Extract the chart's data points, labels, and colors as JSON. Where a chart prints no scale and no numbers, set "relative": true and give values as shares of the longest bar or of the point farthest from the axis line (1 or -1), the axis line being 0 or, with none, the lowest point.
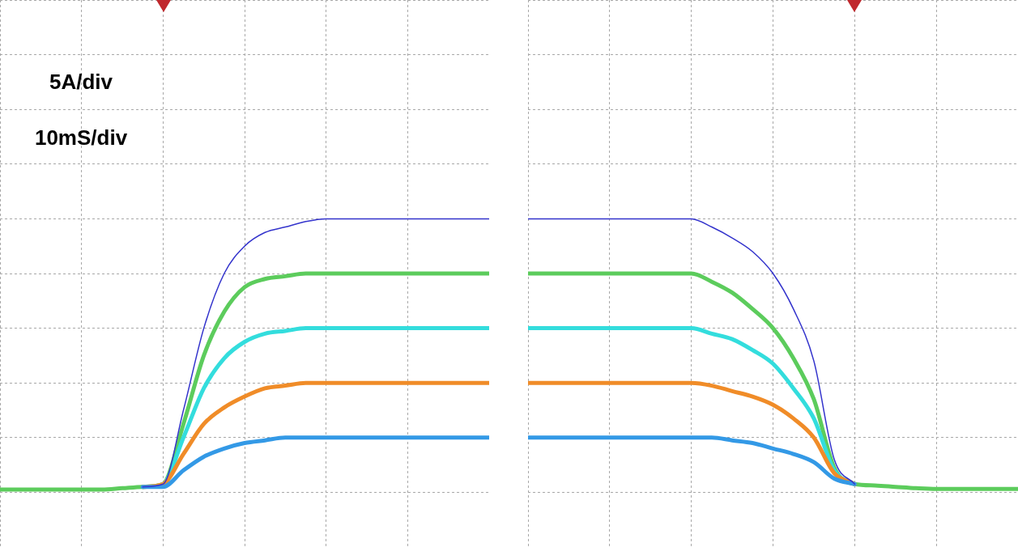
{
  "chart_data": [
    {
      "type": "line",
      "relative": true,
      "grid": true,
      "tick_labels": false,
      "annotations": [
        "5A/div",
        "10mS/div"
      ],
      "categories": [
        null,
        null,
        null,
        null,
        null,
        null,
        null,
        null,
        null,
        null,
        null,
        null,
        null,
        null,
        null,
        null,
        null,
        null,
        null,
        null,
        null,
        null,
        null,
        null,
        null
      ],
      "series": [
        {
          "color": "#3333cc",
          "values": [
            null,
            null,
            null,
            null,
            null,
            null,
            null,
            0.02,
            0.03,
            0.3,
            0.6,
            0.8,
            0.9,
            0.95,
            0.97,
            0.99,
            1,
            1,
            1,
            1,
            1,
            1,
            1,
            1,
            1
          ]
        },
        {
          "color": "#3399e6",
          "values": [
            null,
            null,
            null,
            null,
            null,
            null,
            null,
            0.02,
            0.02,
            0.08,
            0.13,
            0.16,
            0.18,
            0.19,
            0.2,
            0.2,
            0.2,
            0.2,
            0.2,
            0.2,
            0.2,
            0.2,
            0.2,
            0.2,
            0.2
          ]
        },
        {
          "color": "#f08c28",
          "values": [
            null,
            null,
            null,
            null,
            null,
            null,
            null,
            0.02,
            0.03,
            0.14,
            0.25,
            0.31,
            0.35,
            0.38,
            0.39,
            0.4,
            0.4,
            0.4,
            0.4,
            0.4,
            0.4,
            0.4,
            0.4,
            0.4,
            0.4
          ]
        },
        {
          "color": "#33dddd",
          "values": [
            null,
            null,
            null,
            null,
            null,
            null,
            null,
            0.02,
            0.03,
            0.2,
            0.38,
            0.49,
            0.55,
            0.58,
            0.59,
            0.6,
            0.6,
            0.6,
            0.6,
            0.6,
            0.6,
            0.6,
            0.6,
            0.6,
            0.6
          ]
        },
        {
          "color": "#5ccc5c",
          "values": [
            0.01,
            0.01,
            0.01,
            0.01,
            0.01,
            0.01,
            0.015,
            0.02,
            0.03,
            0.25,
            0.5,
            0.66,
            0.75,
            0.78,
            0.79,
            0.8,
            0.8,
            0.8,
            0.8,
            0.8,
            0.8,
            0.8,
            0.8,
            0.8,
            0.8
          ]
        }
      ]
    },
    {
      "type": "line",
      "relative": true,
      "grid": true,
      "tick_labels": false,
      "categories": [
        null,
        null,
        null,
        null,
        null,
        null,
        null,
        null,
        null,
        null,
        null,
        null,
        null,
        null,
        null,
        null,
        null,
        null,
        null,
        null,
        null,
        null,
        null,
        null,
        null
      ],
      "series": [
        {
          "color": "#3333cc",
          "values": [
            1,
            1,
            1,
            1,
            1,
            1,
            1,
            1,
            1,
            0.97,
            0.93,
            0.88,
            0.8,
            0.67,
            0.48,
            0.12,
            0.03,
            null,
            null,
            null,
            null,
            null,
            null,
            null,
            null
          ]
        },
        {
          "color": "#3399e6",
          "values": [
            0.2,
            0.2,
            0.2,
            0.2,
            0.2,
            0.2,
            0.2,
            0.2,
            0.2,
            0.2,
            0.19,
            0.18,
            0.16,
            0.14,
            0.11,
            0.05,
            0.03,
            null,
            null,
            null,
            null,
            null,
            null,
            null,
            null
          ]
        },
        {
          "color": "#f08c28",
          "values": [
            0.4,
            0.4,
            0.4,
            0.4,
            0.4,
            0.4,
            0.4,
            0.4,
            0.4,
            0.39,
            0.37,
            0.35,
            0.32,
            0.27,
            0.2,
            0.07,
            0.03,
            null,
            null,
            null,
            null,
            null,
            null,
            null,
            null
          ]
        },
        {
          "color": "#33dddd",
          "values": [
            0.6,
            0.6,
            0.6,
            0.6,
            0.6,
            0.6,
            0.6,
            0.6,
            0.6,
            0.58,
            0.56,
            0.52,
            0.47,
            0.38,
            0.27,
            0.08,
            0.03,
            null,
            null,
            null,
            null,
            null,
            null,
            null,
            null
          ]
        },
        {
          "color": "#5ccc5c",
          "values": [
            0.8,
            0.8,
            0.8,
            0.8,
            0.8,
            0.8,
            0.8,
            0.8,
            0.8,
            0.77,
            0.73,
            0.67,
            0.6,
            0.49,
            0.34,
            0.09,
            0.03,
            0.025,
            0.02,
            0.015,
            0.012,
            0.012,
            0.012,
            0.012,
            0.012
          ]
        }
      ]
    }
  ]
}
